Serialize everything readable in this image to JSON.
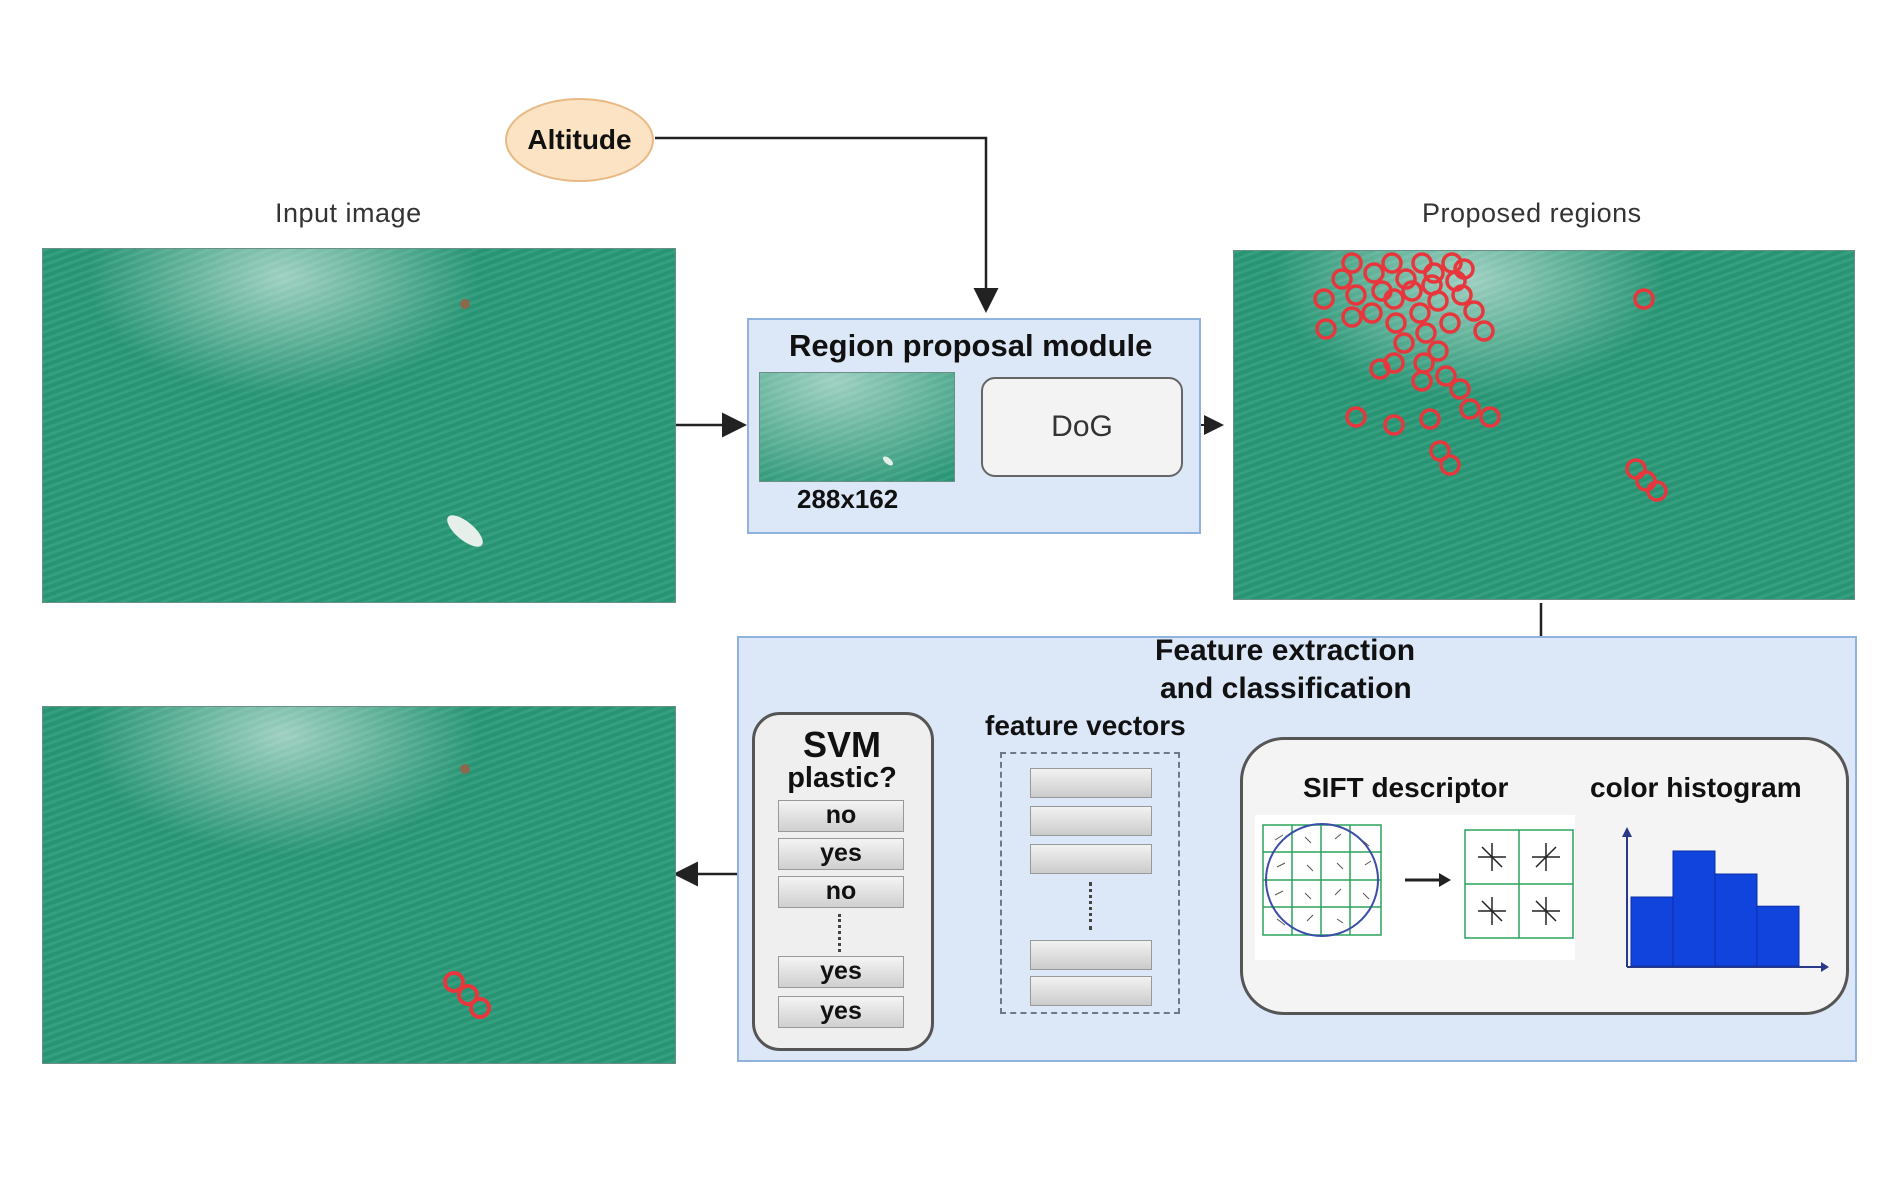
{
  "altitude": {
    "label": "Altitude"
  },
  "input_image": {
    "caption": "Input image"
  },
  "proposed_regions": {
    "caption": "Proposed regions"
  },
  "region_module": {
    "title": "Region proposal module",
    "dog_label": "DoG",
    "size_label": "288x162"
  },
  "feature_panel": {
    "title_line1": "Feature extraction",
    "title_line2": "and classification"
  },
  "sift": {
    "label": "SIFT descriptor"
  },
  "color_hist": {
    "label": "color histogram",
    "values": [
      3,
      5,
      4,
      2.6
    ]
  },
  "feature_vectors": {
    "label": "feature vectors"
  },
  "svm": {
    "title": "SVM",
    "question": "plastic?",
    "answers": [
      "no",
      "yes",
      "no",
      "yes",
      "yes"
    ]
  },
  "colors": {
    "water": "#2a9a78",
    "panel": "#dce8f8",
    "hist_bar": "#1144dd",
    "region_circle": "#e8373c"
  }
}
